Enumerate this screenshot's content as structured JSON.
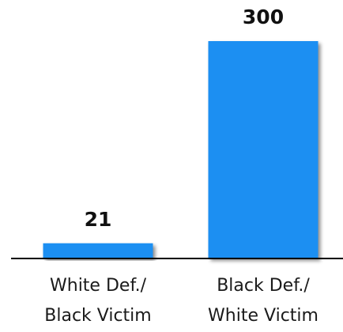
{
  "colors": {
    "bar": "#1a8ff2",
    "axis": "#000000"
  },
  "chart_data": {
    "type": "bar",
    "categories": [
      [
        "White Def./",
        "Black Victim"
      ],
      [
        "Black Def./",
        "White Victim"
      ]
    ],
    "values": [
      21,
      300
    ],
    "data_labels": [
      "21",
      "300"
    ],
    "title": "",
    "xlabel": "",
    "ylabel": "",
    "ylim": [
      0,
      300
    ],
    "grid": false,
    "legend": "none"
  }
}
